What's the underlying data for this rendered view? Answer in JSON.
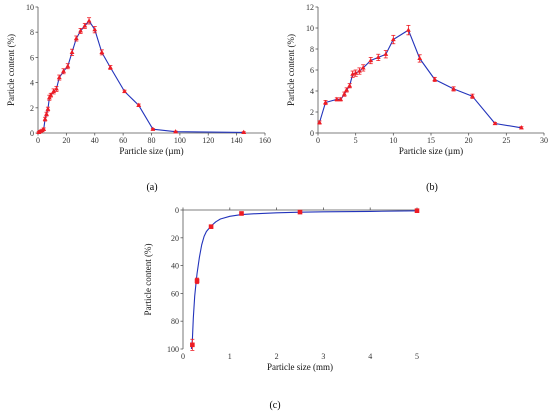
{
  "colors": {
    "line": "#2233bb",
    "marker": "#ee1c24",
    "error": "#ee1c24",
    "axis": "#555555",
    "tick_text": "#333333"
  },
  "chart_data": [
    {
      "type": "line",
      "panel_label": "(a)",
      "xlabel": "Particle size (µm)",
      "ylabel": "Particle content (%)",
      "xlim": [
        0,
        160
      ],
      "ylim": [
        0,
        10
      ],
      "xticks": [
        "0",
        "20",
        "40",
        "60",
        "80",
        "100",
        "120",
        "140",
        "160"
      ],
      "yticks": [
        "0",
        "2",
        "4",
        "6",
        "8",
        "10"
      ],
      "invert_y": false,
      "smooth": false,
      "grid": false,
      "series": [
        {
          "x": [
            0.5,
            1,
            2,
            3,
            4,
            5,
            6,
            7,
            8,
            9,
            11,
            13,
            15,
            18,
            21,
            24,
            27,
            30,
            33,
            36,
            40,
            45,
            51,
            61,
            71,
            81,
            97,
            145
          ],
          "y": [
            0.05,
            0.1,
            0.15,
            0.2,
            0.3,
            1.1,
            1.5,
            1.9,
            2.8,
            3.0,
            3.3,
            3.5,
            4.4,
            4.9,
            5.3,
            6.4,
            7.5,
            8.1,
            8.5,
            8.9,
            8.2,
            6.4,
            5.2,
            3.3,
            2.2,
            0.3,
            0.1,
            0.05
          ],
          "err": [
            0.05,
            0.05,
            0.05,
            0.05,
            0.1,
            0.15,
            0.15,
            0.15,
            0.2,
            0.15,
            0.2,
            0.2,
            0.2,
            0.2,
            0.2,
            0.25,
            0.2,
            0.2,
            0.2,
            0.25,
            0.25,
            0.2,
            0.15,
            0.1,
            0.1,
            0.05,
            0.05,
            0.05
          ]
        }
      ]
    },
    {
      "type": "line",
      "panel_label": "(b)",
      "xlabel": "Particle size (µm)",
      "ylabel": "Particle content (%)",
      "xlim": [
        0,
        30
      ],
      "ylim": [
        0,
        12
      ],
      "xticks": [
        "0",
        "5",
        "10",
        "15",
        "20",
        "25",
        "30"
      ],
      "yticks": [
        "0",
        "2",
        "4",
        "6",
        "8",
        "10",
        "12"
      ],
      "invert_y": false,
      "smooth": false,
      "grid": false,
      "series": [
        {
          "x": [
            0.2,
            1.0,
            2.5,
            3.0,
            3.5,
            3.8,
            4.2,
            4.6,
            5.0,
            5.5,
            6.0,
            7.0,
            8.0,
            9.0,
            10.0,
            12.0,
            13.5,
            15.5,
            18.0,
            20.5,
            23.5,
            27.0
          ],
          "y": [
            1.0,
            2.9,
            3.2,
            3.2,
            3.7,
            4.1,
            4.5,
            5.6,
            5.7,
            5.9,
            6.2,
            6.9,
            7.2,
            7.5,
            8.9,
            9.8,
            7.1,
            5.1,
            4.2,
            3.5,
            0.9,
            0.5
          ],
          "err": [
            0.15,
            0.2,
            0.15,
            0.15,
            0.2,
            0.2,
            0.2,
            0.3,
            0.3,
            0.3,
            0.3,
            0.3,
            0.3,
            0.35,
            0.4,
            0.45,
            0.35,
            0.2,
            0.2,
            0.2,
            0.1,
            0.1
          ]
        }
      ]
    },
    {
      "type": "line",
      "panel_label": "(c)",
      "xlabel": "Particle size (mm)",
      "ylabel": "Particle content (%)",
      "xlim": [
        0,
        5
      ],
      "ylim": [
        0,
        100
      ],
      "xticks": [
        "0",
        "1",
        "2",
        "3",
        "4",
        "5"
      ],
      "yticks": [
        "0",
        "20",
        "40",
        "60",
        "80",
        "100"
      ],
      "invert_y": true,
      "smooth": true,
      "grid": false,
      "series": [
        {
          "x": [
            0.2,
            0.3,
            0.6,
            1.25,
            2.5,
            5.0
          ],
          "y": [
            97,
            51,
            12,
            2.5,
            1.5,
            0.5
          ],
          "err": [
            4,
            2,
            1,
            0.5,
            0.5,
            0.3
          ],
          "fit": {
            "x": [
              0.18,
              0.2,
              0.22,
              0.25,
              0.28,
              0.3,
              0.35,
              0.4,
              0.45,
              0.5,
              0.6,
              0.7,
              0.8,
              1.0,
              1.25,
              1.5,
              2.0,
              2.5,
              3.0,
              4.0,
              5.0
            ],
            "y": [
              100,
              93,
              78,
              62,
              52,
              46,
              34,
              25,
              19,
              15.5,
              11.5,
              8.5,
              6.5,
              4.5,
              3.3,
              2.7,
              2.0,
              1.6,
              1.3,
              1.0,
              0.6
            ]
          }
        }
      ]
    }
  ]
}
